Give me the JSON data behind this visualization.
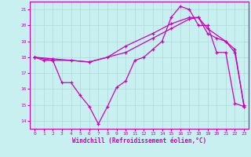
{
  "xlabel": "Windchill (Refroidissement éolien,°C)",
  "xlim": [
    -0.5,
    23.5
  ],
  "ylim": [
    13.5,
    21.5
  ],
  "yticks": [
    14,
    15,
    16,
    17,
    18,
    19,
    20,
    21
  ],
  "xticks": [
    0,
    1,
    2,
    3,
    4,
    5,
    6,
    7,
    8,
    9,
    10,
    11,
    12,
    13,
    14,
    15,
    16,
    17,
    18,
    19,
    20,
    21,
    22,
    23
  ],
  "bg_color": "#c8f0f0",
  "grid_color": "#b0d8d8",
  "line_color": "#cc00bb",
  "line1_x": [
    0,
    1,
    2,
    3,
    4,
    5,
    6,
    7,
    8,
    9,
    10,
    11,
    12,
    13,
    14,
    15,
    16,
    17,
    18,
    19,
    20,
    21,
    22,
    23
  ],
  "line1_y": [
    18.0,
    17.8,
    17.8,
    16.4,
    16.4,
    15.6,
    14.9,
    13.8,
    14.9,
    16.1,
    16.5,
    17.8,
    18.0,
    18.5,
    19.0,
    20.5,
    21.2,
    21.0,
    20.0,
    20.0,
    18.3,
    18.3,
    15.1,
    14.9
  ],
  "line2_x": [
    0,
    2,
    4,
    6,
    8,
    10,
    13,
    15,
    17,
    18,
    19,
    20,
    21,
    22,
    23
  ],
  "line2_y": [
    18.0,
    17.8,
    17.8,
    17.7,
    18.0,
    18.7,
    19.5,
    20.1,
    20.5,
    20.5,
    19.5,
    19.2,
    19.0,
    18.5,
    14.9
  ],
  "line3_x": [
    0,
    2,
    6,
    10,
    13,
    15,
    17,
    18,
    19,
    21,
    22,
    23
  ],
  "line3_y": [
    18.0,
    17.9,
    17.7,
    18.3,
    19.2,
    19.8,
    20.4,
    20.5,
    19.8,
    19.0,
    18.3,
    15.0
  ]
}
